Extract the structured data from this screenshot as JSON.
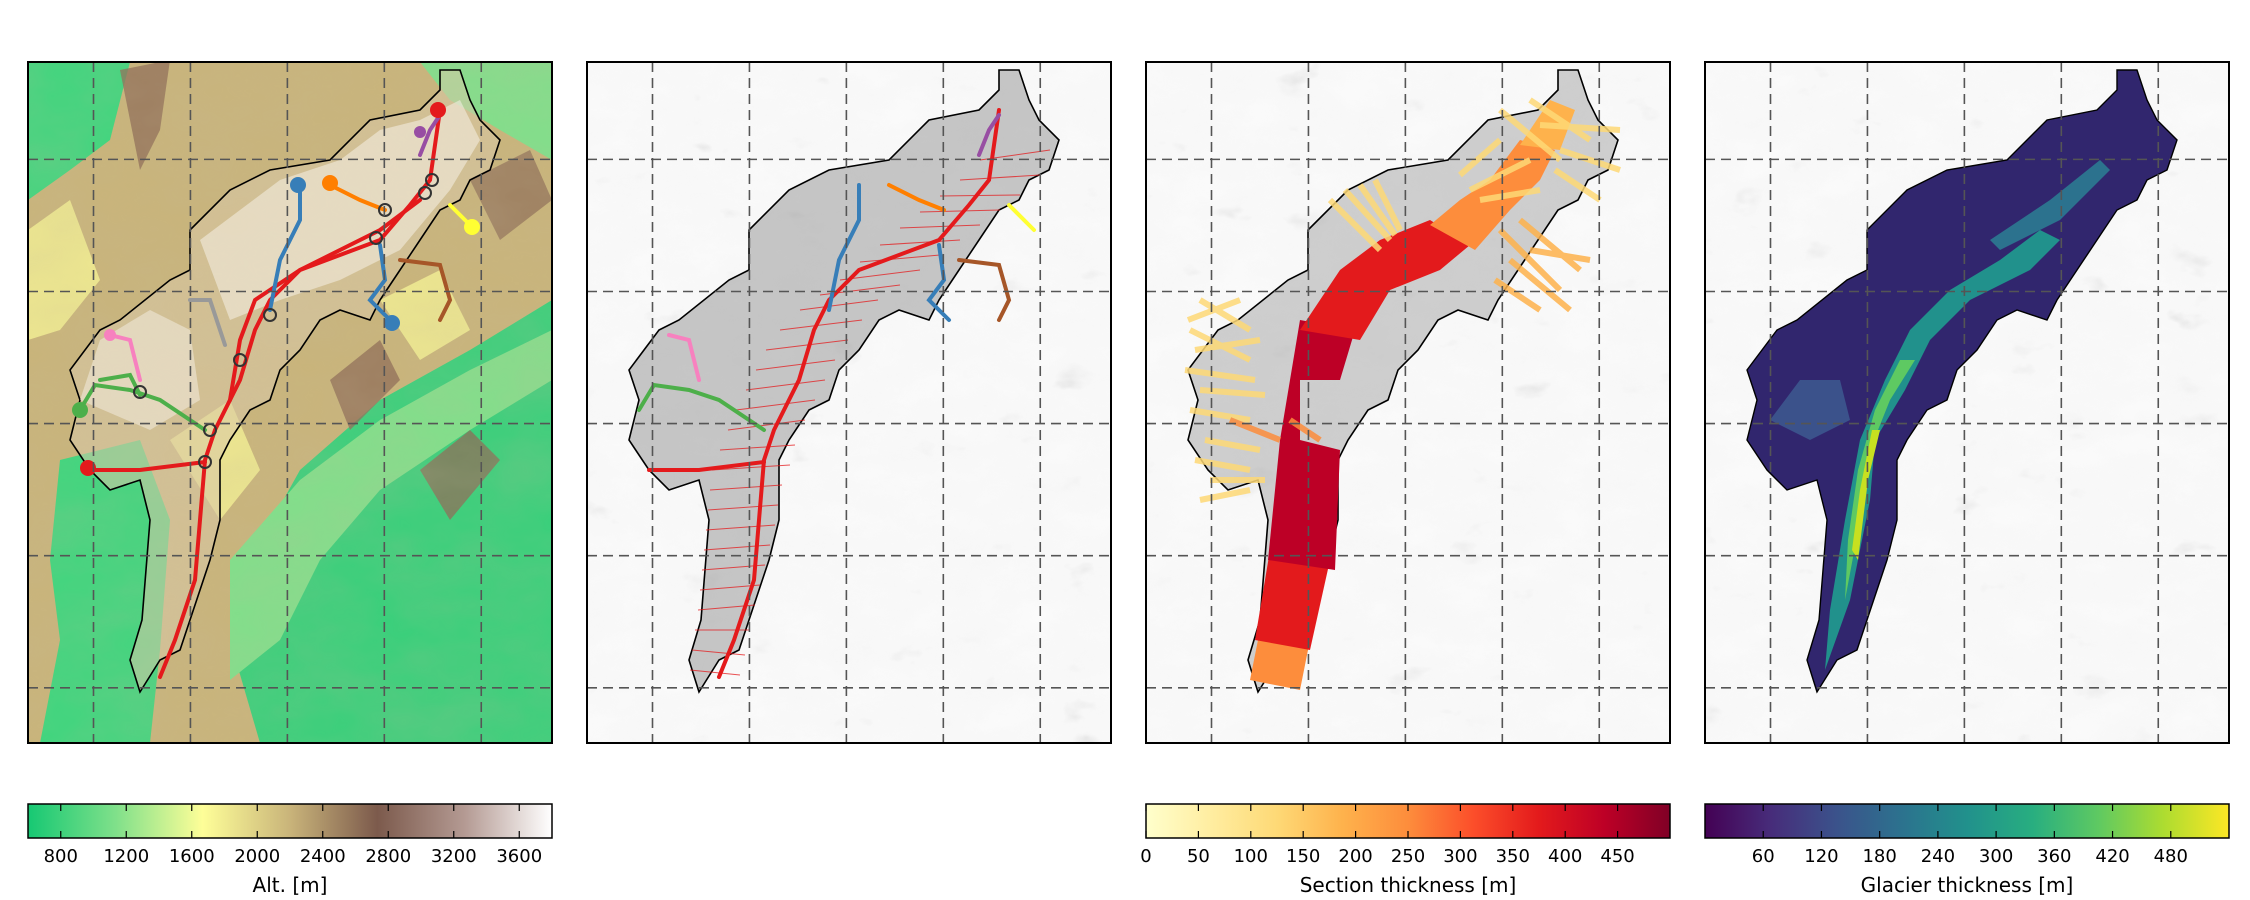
{
  "figure": {
    "panels": [
      {
        "id": "topography",
        "background": "topography"
      },
      {
        "id": "flowlines",
        "background": "hillshade"
      },
      {
        "id": "section_thickness",
        "background": "hillshade"
      },
      {
        "id": "glacier_thickness",
        "background": "hillshade"
      }
    ]
  },
  "chart_data": [
    {
      "type": "heatmap",
      "panel": "topography",
      "colormap": "terrain",
      "colormap_stops": [
        "#16c873",
        "#7fe08a",
        "#fefe98",
        "#c9b47a",
        "#7c5a4c",
        "#b49a93",
        "#ffffff"
      ],
      "colorbar": {
        "label": "Alt. [m]",
        "range": [
          600,
          3800
        ],
        "ticks": [
          800,
          1200,
          1600,
          2000,
          2400,
          2800,
          3200,
          3600
        ],
        "tick_labels": [
          "800",
          "1200",
          "1600",
          "2000",
          "2400",
          "2800",
          "3200",
          "3600"
        ]
      },
      "grid": true,
      "flowline_colors": [
        "#e41a1c",
        "#377eb8",
        "#4daf4a",
        "#984ea3",
        "#ff7f00",
        "#ffff33",
        "#a65628",
        "#f781bf",
        "#999999"
      ]
    },
    {
      "type": "heatmap",
      "panel": "flowlines",
      "description_colors": {
        "flowline": "#e41a1c",
        "cross_section": "#e41a1c"
      },
      "grid": true
    },
    {
      "type": "heatmap",
      "panel": "section_thickness",
      "colormap": "YlOrRd",
      "colormap_stops": [
        "#ffffcc",
        "#ffeda0",
        "#fed976",
        "#feb24c",
        "#fd8d3c",
        "#fc4e2a",
        "#e31a1c",
        "#bd0026",
        "#800026"
      ],
      "colorbar": {
        "label": "Section thickness [m]",
        "range": [
          0,
          500
        ],
        "ticks": [
          0,
          50,
          100,
          150,
          200,
          250,
          300,
          350,
          400,
          450
        ],
        "tick_labels": [
          "0",
          "50",
          "100",
          "150",
          "200",
          "250",
          "300",
          "350",
          "400",
          "450"
        ]
      },
      "grid": true
    },
    {
      "type": "heatmap",
      "panel": "glacier_thickness",
      "colormap": "viridis",
      "colormap_stops": [
        "#440154",
        "#472c7a",
        "#3b528b",
        "#2c728e",
        "#21918c",
        "#28ae80",
        "#5ec962",
        "#addc30",
        "#fde725"
      ],
      "colorbar": {
        "label": "Glacier thickness [m]",
        "range": [
          0,
          540
        ],
        "ticks": [
          60,
          120,
          180,
          240,
          300,
          360,
          420,
          480
        ],
        "tick_labels": [
          "60",
          "120",
          "180",
          "240",
          "300",
          "360",
          "420",
          "480"
        ]
      },
      "grid": true
    }
  ]
}
